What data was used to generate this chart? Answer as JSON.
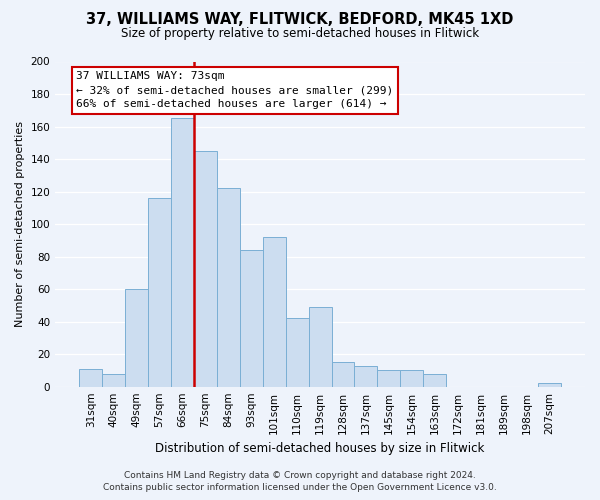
{
  "title": "37, WILLIAMS WAY, FLITWICK, BEDFORD, MK45 1XD",
  "subtitle": "Size of property relative to semi-detached houses in Flitwick",
  "xlabel": "Distribution of semi-detached houses by size in Flitwick",
  "ylabel": "Number of semi-detached properties",
  "bin_labels": [
    "31sqm",
    "40sqm",
    "49sqm",
    "57sqm",
    "66sqm",
    "75sqm",
    "84sqm",
    "93sqm",
    "101sqm",
    "110sqm",
    "119sqm",
    "128sqm",
    "137sqm",
    "145sqm",
    "154sqm",
    "163sqm",
    "172sqm",
    "181sqm",
    "189sqm",
    "198sqm",
    "207sqm"
  ],
  "bar_heights": [
    11,
    8,
    60,
    116,
    165,
    145,
    122,
    84,
    92,
    42,
    49,
    15,
    13,
    10,
    10,
    8,
    0,
    0,
    0,
    0,
    2
  ],
  "bar_color": "#ccddf0",
  "bar_edge_color": "#7aafd4",
  "marker_label": "37 WILLIAMS WAY: 73sqm",
  "annotation_line1": "← 32% of semi-detached houses are smaller (299)",
  "annotation_line2": "66% of semi-detached houses are larger (614) →",
  "marker_line_color": "#cc0000",
  "ylim": [
    0,
    200
  ],
  "yticks": [
    0,
    20,
    40,
    60,
    80,
    100,
    120,
    140,
    160,
    180,
    200
  ],
  "footer_line1": "Contains HM Land Registry data © Crown copyright and database right 2024.",
  "footer_line2": "Contains public sector information licensed under the Open Government Licence v3.0.",
  "bg_color": "#eef3fb",
  "annotation_box_bg": "#ffffff",
  "annotation_box_edge": "#cc0000",
  "grid_color": "#ffffff",
  "title_fontsize": 10.5,
  "subtitle_fontsize": 8.5,
  "xlabel_fontsize": 8.5,
  "ylabel_fontsize": 8.0,
  "tick_fontsize": 7.5,
  "annotation_fontsize": 8.0,
  "footer_fontsize": 6.5
}
